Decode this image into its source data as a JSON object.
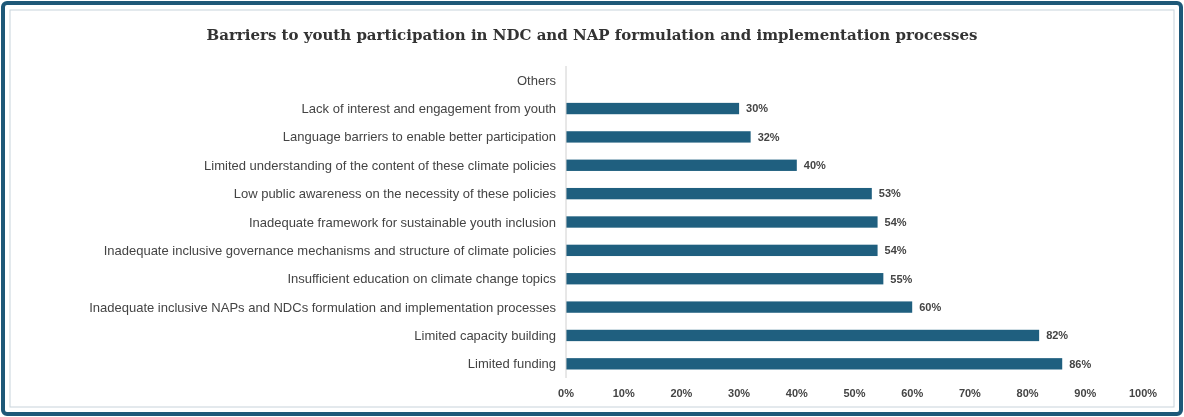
{
  "chart_data": {
    "type": "bar",
    "orientation": "horizontal",
    "title": "Barriers to youth participation in NDC and NAP formulation and implementation processes",
    "categories": [
      "Others",
      "Lack of interest and engagement from youth",
      "Language barriers to enable better participation",
      "Limited understanding of the content of these climate policies",
      "Low public awareness on the necessity of these policies",
      "Inadequate framework for sustainable youth inclusion",
      "Inadequate inclusive governance mechanisms and structure of climate policies",
      "Insufficient education on climate change topics",
      "Inadequate inclusive NAPs and NDCs formulation and implementation processes",
      "Limited capacity building",
      "Limited funding"
    ],
    "values": [
      null,
      30,
      32,
      40,
      53,
      54,
      54,
      55,
      60,
      82,
      86
    ],
    "value_labels": [
      null,
      "30%",
      "32%",
      "40%",
      "53%",
      "54%",
      "54%",
      "55%",
      "60%",
      "82%",
      "86%"
    ],
    "color": "#1f5f7f",
    "xlim": [
      0,
      100
    ],
    "xticks": [
      {
        "value": 0,
        "label": "0%"
      },
      {
        "value": 10,
        "label": "10%"
      },
      {
        "value": 20,
        "label": "20%"
      },
      {
        "value": 30,
        "label": "30%"
      },
      {
        "value": 40,
        "label": "40%"
      },
      {
        "value": 50,
        "label": "50%"
      },
      {
        "value": 60,
        "label": "60%"
      },
      {
        "value": 70,
        "label": "70%"
      },
      {
        "value": 80,
        "label": "80%"
      },
      {
        "value": 90,
        "label": "90%"
      },
      {
        "value": 100,
        "label": "100%"
      }
    ],
    "grid": false
  }
}
